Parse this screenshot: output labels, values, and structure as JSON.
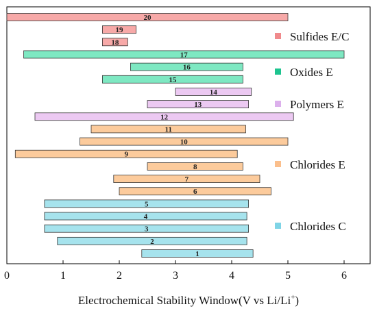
{
  "chart_data": {
    "type": "bar",
    "orientation": "horizontal-range",
    "xlabel_main": "Electrochemical Stability Window(V vs Li/Li",
    "xlabel_sup": "+",
    "xlabel_end": ")",
    "xlim": [
      0,
      6.5
    ],
    "xticks": [
      "0",
      "1",
      "2",
      "3",
      "4",
      "5",
      "6"
    ],
    "bars": [
      {
        "label": "20",
        "start": 0.0,
        "end": 5.0,
        "group": "sulfides"
      },
      {
        "label": "19",
        "start": 1.7,
        "end": 2.3,
        "group": "sulfides"
      },
      {
        "label": "18",
        "start": 1.7,
        "end": 2.15,
        "group": "sulfides"
      },
      {
        "label": "17",
        "start": 0.3,
        "end": 6.0,
        "group": "oxides"
      },
      {
        "label": "16",
        "start": 2.2,
        "end": 4.2,
        "group": "oxides"
      },
      {
        "label": "15",
        "start": 1.7,
        "end": 4.2,
        "group": "oxides"
      },
      {
        "label": "14",
        "start": 3.0,
        "end": 4.35,
        "group": "polymers"
      },
      {
        "label": "13",
        "start": 2.5,
        "end": 4.3,
        "group": "polymers"
      },
      {
        "label": "12",
        "start": 0.5,
        "end": 5.1,
        "group": "polymers"
      },
      {
        "label": "11",
        "start": 1.5,
        "end": 4.25,
        "group": "chloridesE"
      },
      {
        "label": "10",
        "start": 1.3,
        "end": 5.0,
        "group": "chloridesE"
      },
      {
        "label": "9",
        "start": 0.15,
        "end": 4.1,
        "group": "chloridesE"
      },
      {
        "label": "8",
        "start": 2.5,
        "end": 4.2,
        "group": "chloridesE"
      },
      {
        "label": "7",
        "start": 1.9,
        "end": 4.5,
        "group": "chloridesE"
      },
      {
        "label": "6",
        "start": 2.0,
        "end": 4.7,
        "group": "chloridesE"
      },
      {
        "label": "5",
        "start": 0.67,
        "end": 4.3,
        "group": "chloridesC"
      },
      {
        "label": "4",
        "start": 0.67,
        "end": 4.27,
        "group": "chloridesC"
      },
      {
        "label": "3",
        "start": 0.67,
        "end": 4.3,
        "group": "chloridesC"
      },
      {
        "label": "2",
        "start": 0.9,
        "end": 4.27,
        "group": "chloridesC"
      },
      {
        "label": "1",
        "start": 2.4,
        "end": 4.38,
        "group": "chloridesC"
      }
    ],
    "groups": {
      "sulfides": {
        "legend": "Sulfides E/C",
        "color": "#f7a9a8"
      },
      "oxides": {
        "legend": "Oxides E",
        "color": "#7ee8c2"
      },
      "polymers": {
        "legend": "Polymers E",
        "color": "#ecc9f2"
      },
      "chloridesE": {
        "legend": "Chlorides E",
        "color": "#fccb9c"
      },
      "chloridesC": {
        "legend": "Chlorides C",
        "color": "#a6e3ed"
      }
    },
    "legend_markers": {
      "sulfides": "#f08a8c",
      "oxides": "#1dc48f",
      "polymers": "#dcb0ec",
      "chloridesE": "#fbbf8c",
      "chloridesC": "#7fd4e6"
    },
    "legend_placement": "right",
    "grid": false
  }
}
